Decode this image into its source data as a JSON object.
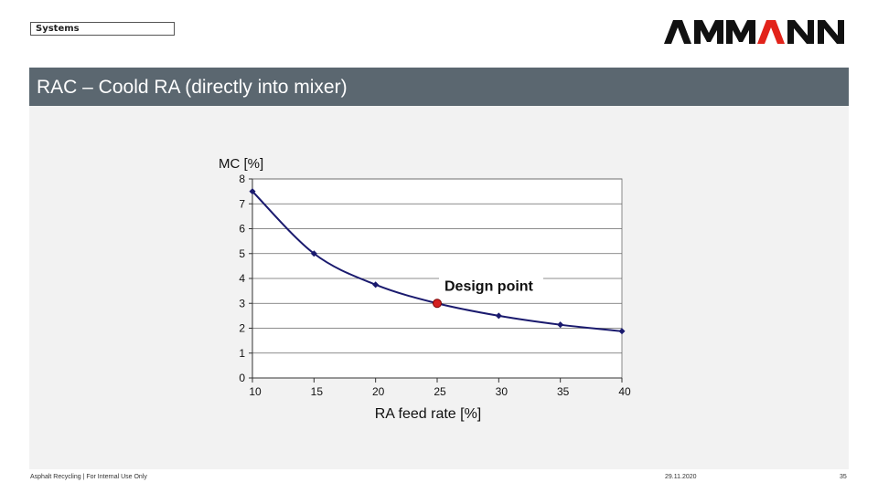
{
  "header": {
    "tag": "Systems",
    "logo_text": "AMMANN",
    "title": "RAC – Coold RA (directly into mixer)"
  },
  "footer": {
    "left": "Asphalt Recycling | For Internal Use Only",
    "date": "29.11.2020",
    "page": "35"
  },
  "colors": {
    "title_bar": "#5b6770",
    "curve": "#1a1a6e",
    "design_point": "#d42020",
    "logo": "#111111",
    "logo_accent": "#e2231a"
  },
  "chart_data": {
    "type": "line",
    "title": "",
    "xlabel": "RA feed rate [%]",
    "ylabel": "MC [%]",
    "xlim": [
      10,
      40
    ],
    "ylim": [
      0,
      8
    ],
    "xticks": [
      10,
      15,
      20,
      25,
      30,
      35,
      40
    ],
    "yticks": [
      0,
      1,
      2,
      3,
      4,
      5,
      6,
      7,
      8
    ],
    "grid": "horizontal",
    "series": [
      {
        "x": [
          10,
          15,
          20,
          25,
          30,
          35,
          40
        ],
        "y": [
          7.5,
          5.0,
          3.75,
          3.0,
          2.5,
          2.14,
          1.88
        ]
      }
    ],
    "annotations": [
      {
        "text": "Design point",
        "x": 25,
        "y": 3.0
      }
    ]
  }
}
